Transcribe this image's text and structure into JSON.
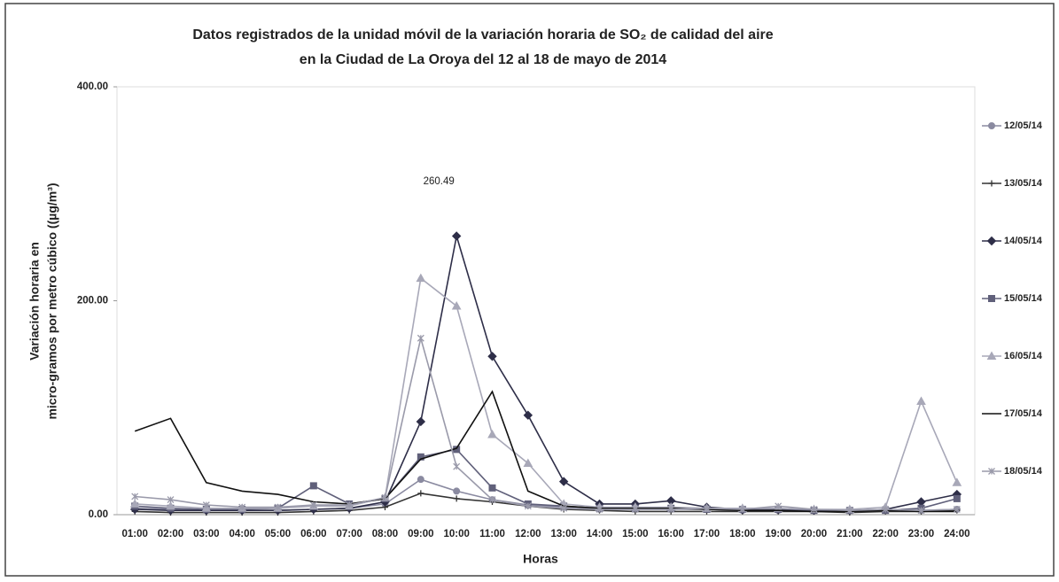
{
  "chart_data": {
    "type": "line",
    "title": [
      "Datos registrados de la unidad móvil de la variación horaria de SO₂ de calidad del aire",
      "en la Ciudad de La Oroya del 12 al 18 de mayo de 2014"
    ],
    "x_label": "Horas",
    "y_label": [
      "Variación horaria en",
      "micro-gramos por metro cúbico ((µg/m³)"
    ],
    "annotations": [
      "260.49"
    ],
    "categories": [
      "01:00",
      "02:00",
      "03:00",
      "04:00",
      "05:00",
      "06:00",
      "07:00",
      "08:00",
      "09:00",
      "10:00",
      "11:00",
      "12:00",
      "13:00",
      "14:00",
      "15:00",
      "16:00",
      "17:00",
      "18:00",
      "19:00",
      "20:00",
      "21:00",
      "22:00",
      "23:00",
      "24:00"
    ],
    "ylim": [
      0,
      400
    ],
    "yticks": [
      {
        "value": 0,
        "label": "0.00"
      },
      {
        "value": 200,
        "label": "200.00"
      },
      {
        "value": 400,
        "label": "400.00"
      }
    ],
    "legend": "right",
    "series": [
      {
        "name": "12/05/14",
        "color": "#8a8aa0",
        "marker": "circle",
        "values": [
          6,
          5,
          4,
          4,
          4,
          5,
          6,
          10,
          33,
          22,
          14,
          9,
          7,
          5,
          5,
          5,
          5,
          4,
          4,
          4,
          4,
          4,
          4,
          5
        ]
      },
      {
        "name": "13/05/14",
        "color": "#333333",
        "marker": "plus",
        "values": [
          3,
          2,
          2,
          2,
          2,
          3,
          4,
          7,
          20,
          15,
          12,
          8,
          5,
          4,
          3,
          3,
          3,
          3,
          3,
          3,
          2,
          3,
          3,
          4
        ]
      },
      {
        "name": "14/05/14",
        "color": "#2e2e48",
        "marker": "diamond",
        "values": [
          5,
          4,
          4,
          4,
          4,
          5,
          6,
          12,
          87,
          260.49,
          148,
          93,
          31,
          10,
          10,
          13,
          7,
          5,
          5,
          4,
          4,
          5,
          12,
          19
        ]
      },
      {
        "name": "15/05/14",
        "color": "#60607a",
        "marker": "square",
        "values": [
          8,
          6,
          5,
          5,
          6,
          27,
          10,
          15,
          54,
          61,
          25,
          10,
          8,
          6,
          6,
          6,
          5,
          5,
          5,
          4,
          4,
          4,
          6,
          15
        ]
      },
      {
        "name": "16/05/14",
        "color": "#a8a8b8",
        "marker": "triangle",
        "values": [
          10,
          8,
          6,
          6,
          6,
          8,
          8,
          16,
          221,
          195,
          75,
          48,
          10,
          7,
          7,
          7,
          6,
          6,
          6,
          5,
          5,
          7,
          106,
          30
        ]
      },
      {
        "name": "17/05/14",
        "color": "#111111",
        "marker": "none",
        "values": [
          78,
          90,
          30,
          22,
          19,
          12,
          10,
          15,
          52,
          62,
          115,
          22,
          8,
          6,
          6,
          6,
          5,
          4,
          4,
          3,
          3,
          4,
          3,
          3
        ]
      },
      {
        "name": "18/05/14",
        "color": "#9a9aaa",
        "marker": "star",
        "values": [
          17,
          14,
          9,
          7,
          7,
          9,
          9,
          16,
          165,
          45,
          14,
          8,
          6,
          5,
          5,
          5,
          6,
          5,
          8,
          5,
          4,
          5,
          4,
          5
        ]
      }
    ]
  }
}
